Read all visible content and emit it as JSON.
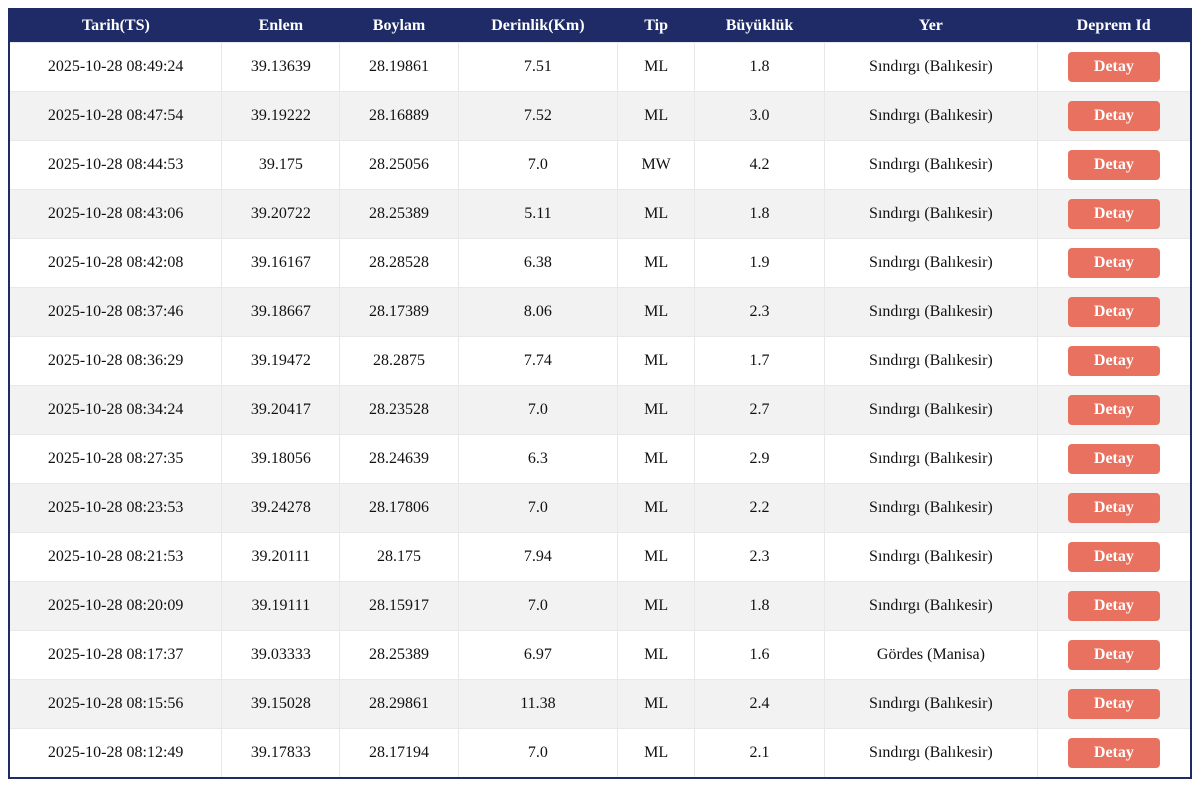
{
  "theme": {
    "header_bg": "#1e2b66",
    "header_text": "#ffffff",
    "stripe_bg": "#f2f2f2",
    "row_bg": "#ffffff",
    "cell_border": "#e8e8e8",
    "button_bg": "#e8715f",
    "button_text": "#ffffff"
  },
  "table": {
    "detay_label": "Detay",
    "columns": [
      {
        "key": "tarih",
        "label": "Tarih(TS)"
      },
      {
        "key": "enlem",
        "label": "Enlem"
      },
      {
        "key": "boylam",
        "label": "Boylam"
      },
      {
        "key": "derinlik",
        "label": "Derinlik(Km)"
      },
      {
        "key": "tip",
        "label": "Tip"
      },
      {
        "key": "buyukluk",
        "label": "Büyüklük"
      },
      {
        "key": "yer",
        "label": "Yer"
      },
      {
        "key": "deprem_id",
        "label": "Deprem Id"
      }
    ],
    "rows": [
      {
        "tarih": "2025-10-28 08:49:24",
        "enlem": "39.13639",
        "boylam": "28.19861",
        "derinlik": "7.51",
        "tip": "ML",
        "buyukluk": "1.8",
        "yer": "Sındırgı (Balıkesir)"
      },
      {
        "tarih": "2025-10-28 08:47:54",
        "enlem": "39.19222",
        "boylam": "28.16889",
        "derinlik": "7.52",
        "tip": "ML",
        "buyukluk": "3.0",
        "yer": "Sındırgı (Balıkesir)"
      },
      {
        "tarih": "2025-10-28 08:44:53",
        "enlem": "39.175",
        "boylam": "28.25056",
        "derinlik": "7.0",
        "tip": "MW",
        "buyukluk": "4.2",
        "yer": "Sındırgı (Balıkesir)"
      },
      {
        "tarih": "2025-10-28 08:43:06",
        "enlem": "39.20722",
        "boylam": "28.25389",
        "derinlik": "5.11",
        "tip": "ML",
        "buyukluk": "1.8",
        "yer": "Sındırgı (Balıkesir)"
      },
      {
        "tarih": "2025-10-28 08:42:08",
        "enlem": "39.16167",
        "boylam": "28.28528",
        "derinlik": "6.38",
        "tip": "ML",
        "buyukluk": "1.9",
        "yer": "Sındırgı (Balıkesir)"
      },
      {
        "tarih": "2025-10-28 08:37:46",
        "enlem": "39.18667",
        "boylam": "28.17389",
        "derinlik": "8.06",
        "tip": "ML",
        "buyukluk": "2.3",
        "yer": "Sındırgı (Balıkesir)"
      },
      {
        "tarih": "2025-10-28 08:36:29",
        "enlem": "39.19472",
        "boylam": "28.2875",
        "derinlik": "7.74",
        "tip": "ML",
        "buyukluk": "1.7",
        "yer": "Sındırgı (Balıkesir)"
      },
      {
        "tarih": "2025-10-28 08:34:24",
        "enlem": "39.20417",
        "boylam": "28.23528",
        "derinlik": "7.0",
        "tip": "ML",
        "buyukluk": "2.7",
        "yer": "Sındırgı (Balıkesir)"
      },
      {
        "tarih": "2025-10-28 08:27:35",
        "enlem": "39.18056",
        "boylam": "28.24639",
        "derinlik": "6.3",
        "tip": "ML",
        "buyukluk": "2.9",
        "yer": "Sındırgı (Balıkesir)"
      },
      {
        "tarih": "2025-10-28 08:23:53",
        "enlem": "39.24278",
        "boylam": "28.17806",
        "derinlik": "7.0",
        "tip": "ML",
        "buyukluk": "2.2",
        "yer": "Sındırgı (Balıkesir)"
      },
      {
        "tarih": "2025-10-28 08:21:53",
        "enlem": "39.20111",
        "boylam": "28.175",
        "derinlik": "7.94",
        "tip": "ML",
        "buyukluk": "2.3",
        "yer": "Sındırgı (Balıkesir)"
      },
      {
        "tarih": "2025-10-28 08:20:09",
        "enlem": "39.19111",
        "boylam": "28.15917",
        "derinlik": "7.0",
        "tip": "ML",
        "buyukluk": "1.8",
        "yer": "Sındırgı (Balıkesir)"
      },
      {
        "tarih": "2025-10-28 08:17:37",
        "enlem": "39.03333",
        "boylam": "28.25389",
        "derinlik": "6.97",
        "tip": "ML",
        "buyukluk": "1.6",
        "yer": "Gördes (Manisa)"
      },
      {
        "tarih": "2025-10-28 08:15:56",
        "enlem": "39.15028",
        "boylam": "28.29861",
        "derinlik": "11.38",
        "tip": "ML",
        "buyukluk": "2.4",
        "yer": "Sındırgı (Balıkesir)"
      },
      {
        "tarih": "2025-10-28 08:12:49",
        "enlem": "39.17833",
        "boylam": "28.17194",
        "derinlik": "7.0",
        "tip": "ML",
        "buyukluk": "2.1",
        "yer": "Sındırgı (Balıkesir)"
      }
    ]
  }
}
